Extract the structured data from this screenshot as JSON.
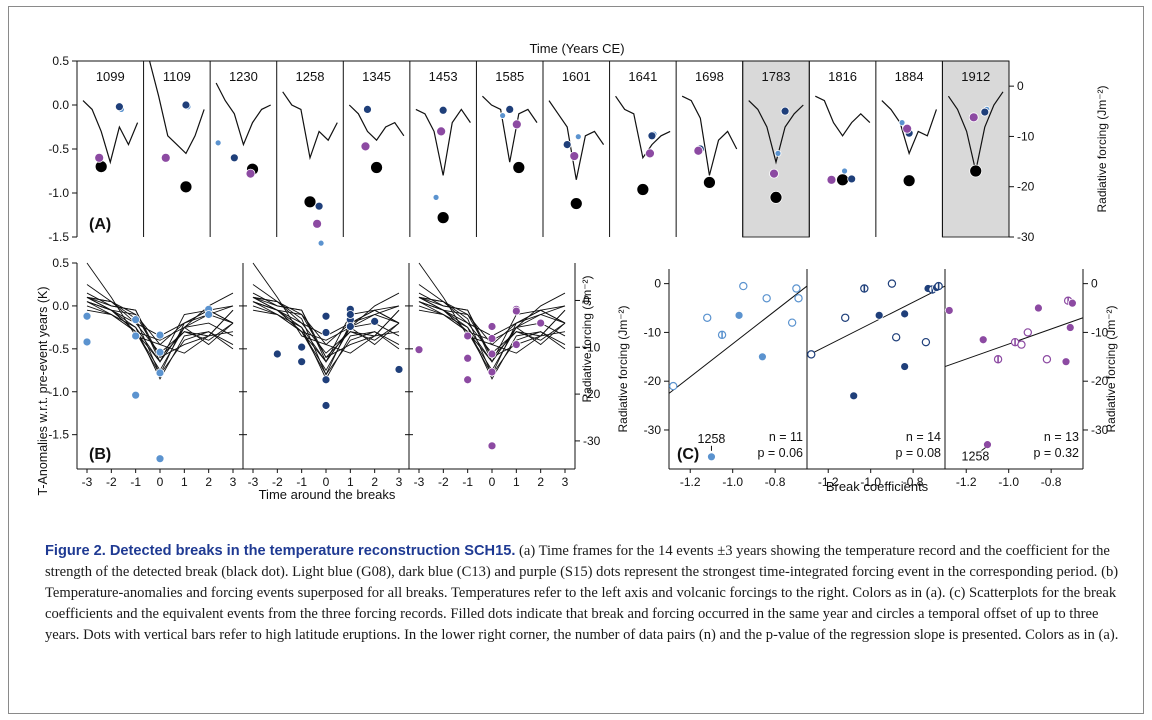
{
  "figure": {
    "top_axis_label": "Time (Years CE)",
    "left_axis_label": "T-Anomalies w.r.t. pre-event years (K)",
    "right_axis_label": "Radiative forcing (Jm⁻²)",
    "bottom_label_b": "Time around the breaks",
    "bottom_label_c": "Break coefficients",
    "c_left_axis_label": "Radiative forcing (Jm⁻²)",
    "c_right_axis_label": "Radiative forcing (Jm⁻²)",
    "panel_a_label": "(A)",
    "panel_b_label": "(B)",
    "panel_c_label": "(C)"
  },
  "caption": {
    "title": "Figure 2. Detected breaks in the temperature reconstruction SCH15.",
    "text": " (a) Time frames for the 14 events ±3 years showing the temperature record and the coefficient for the strength of the detected break (black dot). Light blue (G08), dark blue (C13) and purple (S15) dots represent the strongest time-integrated forcing event in the corresponding period. (b) Temperature-anomalies and forcing events superposed for all breaks. Temperatures refer to the left axis and volcanic forcings to the right. Colors as in (a). (c) Scatterplots for the break coefficients and the equivalent events from the three forcing records. Filled dots indicate that break and forcing occurred in the same year and circles a temporal offset of up to three years. Dots with vertical bars refer to high latitude eruptions. In the lower right corner, the number of data pairs (n) and the p-value of the regression slope is presented. Colors as in (a)."
  },
  "chart_data": [
    {
      "id": "A",
      "type": "line",
      "title": "",
      "events": [
        "1099",
        "1109",
        "1230",
        "1258",
        "1345",
        "1453",
        "1585",
        "1601",
        "1641",
        "1698",
        "1783",
        "1816",
        "1884",
        "1912"
      ],
      "shaded_events": [
        "1783",
        "1912"
      ],
      "left_axis": {
        "range": [
          -1.5,
          0.5
        ],
        "ticks": [
          "0.5",
          "0.0",
          "-0.5",
          "-1.0",
          "-1.5"
        ]
      },
      "right_axis": {
        "range": [
          -30,
          5
        ],
        "ticks": [
          "0",
          "-10",
          "-20",
          "-30"
        ]
      },
      "x_relative_years": [
        -3,
        -2,
        -1,
        0,
        1,
        2,
        3
      ],
      "temperature": [
        [
          0.05,
          -0.05,
          -0.3,
          -0.65,
          -0.25,
          -0.45,
          -0.2
        ],
        [
          0.5,
          0.1,
          -0.35,
          -0.45,
          -0.55,
          -0.35,
          -0.05
        ],
        [
          0.25,
          0.05,
          -0.1,
          -0.45,
          -0.2,
          -0.05,
          0.0
        ],
        [
          0.15,
          0.0,
          -0.05,
          -0.6,
          -0.3,
          -0.4,
          -0.2
        ],
        [
          0.0,
          -0.1,
          -0.3,
          -0.4,
          -0.25,
          -0.2,
          -0.35
        ],
        [
          -0.05,
          -0.1,
          -0.3,
          -0.8,
          -0.2,
          -0.05,
          -0.2
        ],
        [
          0.1,
          0.0,
          -0.05,
          -0.65,
          -0.1,
          -0.05,
          -0.2
        ],
        [
          0.05,
          -0.1,
          -0.25,
          -0.85,
          -0.35,
          -0.3,
          -0.45
        ],
        [
          0.1,
          -0.05,
          -0.1,
          -0.6,
          -0.45,
          -0.35,
          -0.3
        ],
        [
          0.1,
          0.05,
          -0.15,
          -0.8,
          -0.4,
          -0.3,
          -0.5
        ],
        [
          0.05,
          -0.05,
          -0.25,
          -0.65,
          -0.25,
          -0.1,
          0.0
        ],
        [
          0.1,
          0.05,
          -0.2,
          -0.35,
          -0.2,
          -0.1,
          -0.2
        ],
        [
          0.05,
          -0.05,
          -0.2,
          -0.55,
          -0.3,
          -0.35,
          -0.05
        ],
        [
          0.1,
          -0.05,
          -0.3,
          -0.75,
          -0.25,
          0.0,
          0.15
        ]
      ],
      "break_coefficient_year": [
        -1,
        1,
        1,
        0,
        0,
        0,
        1,
        0,
        0,
        0,
        0,
        0,
        0,
        0
      ],
      "break_coefficient": [
        -0.7,
        -0.93,
        -0.73,
        -1.1,
        -0.71,
        -1.28,
        -0.71,
        -1.12,
        -0.96,
        -0.88,
        -1.05,
        -0.85,
        -0.86,
        -0.75
      ],
      "forcing_g08": [
        [
          1,
          -0.05
        ],
        [
          1,
          -0.02
        ],
        [
          -3,
          -0.43
        ],
        [
          1,
          -1.57
        ],
        null,
        [
          -1,
          -1.05
        ],
        [
          -1,
          -0.12
        ],
        [
          0,
          -0.36
        ],
        [
          1,
          -0.33
        ],
        null,
        [
          0,
          -0.55
        ],
        [
          0,
          -0.75
        ],
        [
          -1,
          -0.2
        ],
        [
          1,
          -0.05
        ]
      ],
      "forcing_c13": [
        [
          1,
          -0.02
        ],
        [
          1,
          0.0
        ],
        [
          -1,
          -0.6
        ],
        [
          1,
          -1.15
        ],
        [
          -1,
          -0.05
        ],
        [
          0,
          -0.06
        ],
        [
          0,
          -0.05
        ],
        [
          -1,
          -0.45
        ],
        [
          1,
          -0.35
        ],
        [
          -1,
          -0.5
        ],
        [
          1,
          -0.07
        ],
        [
          1,
          -0.84
        ],
        [
          0,
          -0.32
        ],
        [
          1,
          -0.08
        ]
      ],
      "forcing_s15": [
        [
          -1,
          -0.6
        ],
        [
          -1,
          -0.6
        ],
        [
          1,
          -0.78
        ],
        [
          1,
          -1.35
        ],
        [
          -1,
          -0.47
        ],
        [
          0,
          -0.3
        ],
        [
          1,
          -0.22
        ],
        [
          0,
          -0.58
        ],
        [
          1,
          -0.55
        ],
        [
          -1,
          -0.52
        ],
        [
          0,
          -0.78
        ],
        [
          -1,
          -0.85
        ],
        [
          0,
          -0.27
        ],
        [
          0,
          -0.14
        ]
      ]
    },
    {
      "id": "B",
      "type": "line",
      "title": "",
      "xlabel": "Time around the breaks",
      "x_ticks": [
        "-3",
        "-2",
        "-1",
        "0",
        "1",
        "2",
        "3"
      ],
      "left_axis": {
        "range": [
          -1.9,
          0.5
        ],
        "ticks": [
          "0.5",
          "0.0",
          "-0.5",
          "-1.0",
          "-1.5"
        ]
      },
      "right_axis": {
        "range": [
          -36,
          8
        ],
        "ticks": [
          "0",
          "-10",
          "-20",
          "-30"
        ]
      },
      "sub_panels": [
        "G08",
        "C13",
        "S15"
      ],
      "points_g08": [
        [
          -3,
          -0.42
        ],
        [
          -1,
          -1.04
        ],
        [
          -1,
          -0.16
        ],
        [
          -1,
          -0.35
        ],
        [
          0,
          -0.34
        ],
        [
          0,
          -0.54
        ],
        [
          0,
          -0.78
        ],
        [
          0,
          -1.78
        ],
        [
          2,
          -0.04
        ],
        [
          2,
          -0.1
        ],
        [
          -3,
          -0.12
        ]
      ],
      "points_c13": [
        [
          -2,
          -0.56
        ],
        [
          -1,
          -0.65
        ],
        [
          0,
          -0.86
        ],
        [
          0,
          -1.16
        ],
        [
          1,
          -0.06
        ],
        [
          1,
          -0.04
        ],
        [
          1,
          -0.16
        ],
        [
          3,
          -0.74
        ],
        [
          1,
          -0.24
        ],
        [
          0,
          -0.31
        ],
        [
          -1,
          -0.48
        ],
        [
          2,
          -0.18
        ],
        [
          1,
          -0.1
        ],
        [
          0,
          -0.12
        ]
      ],
      "points_s15": [
        [
          -3,
          -0.51
        ],
        [
          -1,
          -0.61
        ],
        [
          -1,
          -0.86
        ],
        [
          0,
          -0.24
        ],
        [
          0,
          -0.38
        ],
        [
          0,
          -0.56
        ],
        [
          0,
          -0.77
        ],
        [
          0,
          -1.63
        ],
        [
          1,
          -0.04
        ],
        [
          1,
          -0.06
        ],
        [
          -1,
          -0.35
        ],
        [
          2,
          -0.2
        ],
        [
          1,
          -0.45
        ]
      ]
    },
    {
      "id": "C",
      "type": "scatter",
      "title": "",
      "xlabel": "Break coefficients",
      "ylabel": "Radiative forcing (Jm⁻²)",
      "x_ticks": [
        "-1.2",
        "-1.0",
        "-0.8"
      ],
      "xlim": [
        -1.3,
        -0.65
      ],
      "ylim": [
        -38,
        3
      ],
      "y_ticks": [
        "0",
        "-10",
        "-20",
        "-30"
      ],
      "series": [
        {
          "name": "G08",
          "n": "n = 11",
          "p": "p = 0.06",
          "annotation": "1258",
          "points": [
            [
              -1.28,
              -21,
              "circle"
            ],
            [
              -1.12,
              -7,
              "circle"
            ],
            [
              -1.05,
              -10.5,
              "bar"
            ],
            [
              -0.97,
              -6.5,
              "filled"
            ],
            [
              -0.95,
              -0.5,
              "circle"
            ],
            [
              -0.86,
              -15,
              "filled"
            ],
            [
              -0.84,
              -3,
              "circle"
            ],
            [
              -0.72,
              -8,
              "circle"
            ],
            [
              -0.7,
              -1,
              "circle"
            ],
            [
              -0.69,
              -3,
              "circle"
            ],
            [
              -1.1,
              -35.5,
              "filled"
            ]
          ],
          "regression": [
            [
              -1.3,
              -22.5
            ],
            [
              -0.65,
              -0.5
            ]
          ]
        },
        {
          "name": "C13",
          "n": "n = 14",
          "p": "p = 0.08",
          "annotation": "",
          "points": [
            [
              -1.28,
              -14.5,
              "circle"
            ],
            [
              -1.12,
              -7,
              "circle"
            ],
            [
              -1.08,
              -23,
              "filled"
            ],
            [
              -1.03,
              -1,
              "bar"
            ],
            [
              -0.96,
              -6.5,
              "filled"
            ],
            [
              -0.9,
              0,
              "circle"
            ],
            [
              -0.88,
              -11,
              "circle"
            ],
            [
              -0.84,
              -17,
              "filled"
            ],
            [
              -0.84,
              -6.2,
              "filled"
            ],
            [
              -0.74,
              -12,
              "circle"
            ],
            [
              -0.73,
              -1,
              "filled"
            ],
            [
              -0.71,
              -1.2,
              "bar"
            ],
            [
              -0.69,
              -0.8,
              "filled"
            ],
            [
              -0.68,
              -0.5,
              "bar"
            ]
          ],
          "regression": [
            [
              -1.3,
              -14.8
            ],
            [
              -0.65,
              -0.5
            ]
          ]
        },
        {
          "name": "S15",
          "n": "n = 13",
          "p": "p =  0.32",
          "annotation": "1258",
          "points": [
            [
              -1.28,
              -5.5,
              "filled"
            ],
            [
              -1.12,
              -11.5,
              "filled"
            ],
            [
              -1.05,
              -15.5,
              "bar"
            ],
            [
              -0.97,
              -12,
              "bar"
            ],
            [
              -0.94,
              -12.5,
              "circle"
            ],
            [
              -0.91,
              -10,
              "circle"
            ],
            [
              -0.86,
              -5,
              "filled"
            ],
            [
              -0.82,
              -15.5,
              "circle"
            ],
            [
              -0.73,
              -16,
              "filled"
            ],
            [
              -0.72,
              -3.5,
              "bar"
            ],
            [
              -0.71,
              -9,
              "filled"
            ],
            [
              -0.7,
              -4,
              "filled"
            ],
            [
              -1.1,
              -33,
              "filled"
            ]
          ],
          "regression": [
            [
              -1.3,
              -17
            ],
            [
              -0.65,
              -7
            ]
          ]
        }
      ]
    }
  ],
  "colors": {
    "g08": "#5b93cf",
    "c13": "#1f3f7a",
    "s15": "#8c4aa2",
    "line": "#111111",
    "shade": "#d9d9d9",
    "caption_title": "#1f3a93"
  }
}
